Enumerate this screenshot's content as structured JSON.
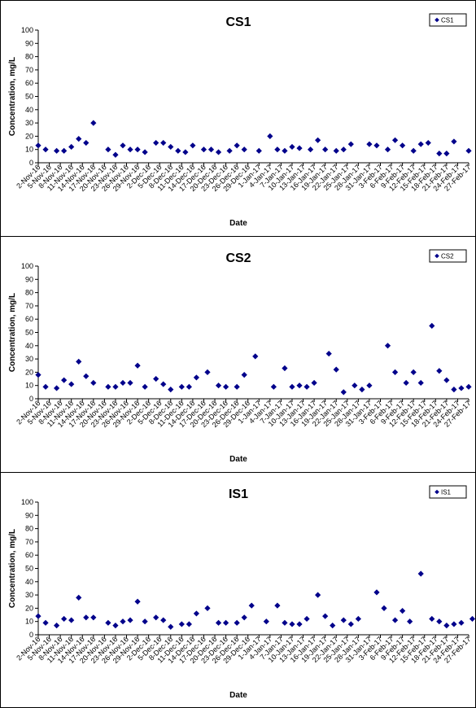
{
  "chart_data": [
    {
      "type": "scatter",
      "title": "CS1",
      "xlabel": "Date",
      "ylabel": "Concentration, mg/L",
      "ylim": [
        0,
        100
      ],
      "yticks": [
        0,
        10,
        20,
        30,
        40,
        50,
        60,
        70,
        80,
        90,
        100
      ],
      "xlim": [
        "2-Nov-16",
        "27-Feb-17"
      ],
      "xtick_labels": [
        "2-Nov-16",
        "5-Nov-16",
        "8-Nov-16",
        "11-Nov-16",
        "14-Nov-16",
        "17-Nov-16",
        "20-Nov-16",
        "23-Nov-16",
        "26-Nov-16",
        "29-Nov-16",
        "2-Dec-16",
        "5-Dec-16",
        "8-Dec-16",
        "11-Dec-16",
        "14-Dec-16",
        "17-Dec-16",
        "20-Dec-16",
        "23-Dec-16",
        "26-Dec-16",
        "29-Dec-16",
        "1-Jan-17",
        "4-Jan-17",
        "7-Jan-17",
        "10-Jan-17",
        "13-Jan-17",
        "16-Jan-17",
        "19-Jan-17",
        "22-Jan-17",
        "25-Jan-17",
        "28-Jan-17",
        "31-Jan-17",
        "3-Feb-17",
        "6-Feb-17",
        "9-Feb-17",
        "12-Feb-17",
        "15-Feb-17",
        "18-Feb-17",
        "21-Feb-17",
        "24-Feb-17",
        "27-Feb-17"
      ],
      "legend": "top-right",
      "grid": false,
      "color": "#00008B",
      "series": [
        {
          "name": "CS1",
          "points": [
            [
              "2-Nov-16",
              13
            ],
            [
              "4-Nov-16",
              10
            ],
            [
              "7-Nov-16",
              9
            ],
            [
              "9-Nov-16",
              9
            ],
            [
              "11-Nov-16",
              12
            ],
            [
              "13-Nov-16",
              18
            ],
            [
              "15-Nov-16",
              15
            ],
            [
              "17-Nov-16",
              30
            ],
            [
              "21-Nov-16",
              10
            ],
            [
              "23-Nov-16",
              6
            ],
            [
              "25-Nov-16",
              13
            ],
            [
              "27-Nov-16",
              10
            ],
            [
              "29-Nov-16",
              10
            ],
            [
              "1-Dec-16",
              8
            ],
            [
              "4-Dec-16",
              15
            ],
            [
              "6-Dec-16",
              15
            ],
            [
              "8-Dec-16",
              12
            ],
            [
              "10-Dec-16",
              9
            ],
            [
              "12-Dec-16",
              8
            ],
            [
              "14-Dec-16",
              13
            ],
            [
              "17-Dec-16",
              10
            ],
            [
              "19-Dec-16",
              10
            ],
            [
              "21-Dec-16",
              8
            ],
            [
              "24-Dec-16",
              9
            ],
            [
              "26-Dec-16",
              13
            ],
            [
              "28-Dec-16",
              10
            ],
            [
              "1-Jan-17",
              9
            ],
            [
              "4-Jan-17",
              20
            ],
            [
              "6-Jan-17",
              10
            ],
            [
              "8-Jan-17",
              9
            ],
            [
              "10-Jan-17",
              12
            ],
            [
              "12-Jan-17",
              11
            ],
            [
              "15-Jan-17",
              10
            ],
            [
              "17-Jan-17",
              17
            ],
            [
              "19-Jan-17",
              10
            ],
            [
              "22-Jan-17",
              9
            ],
            [
              "24-Jan-17",
              10
            ],
            [
              "26-Jan-17",
              14
            ],
            [
              "31-Jan-17",
              14
            ],
            [
              "2-Feb-17",
              13
            ],
            [
              "5-Feb-17",
              10
            ],
            [
              "7-Feb-17",
              17
            ],
            [
              "9-Feb-17",
              13
            ],
            [
              "12-Feb-17",
              9
            ],
            [
              "14-Feb-17",
              14
            ],
            [
              "16-Feb-17",
              15
            ],
            [
              "19-Feb-17",
              7
            ],
            [
              "21-Feb-17",
              7
            ],
            [
              "23-Feb-17",
              16
            ],
            [
              "27-Feb-17",
              9
            ]
          ]
        }
      ]
    },
    {
      "type": "scatter",
      "title": "CS2",
      "xlabel": "Date",
      "ylabel": "Concentration, mg/L",
      "ylim": [
        0,
        100
      ],
      "yticks": [
        0,
        10,
        20,
        30,
        40,
        50,
        60,
        70,
        80,
        90,
        100
      ],
      "xlim": [
        "2-Nov-16",
        "27-Feb-17"
      ],
      "xtick_labels": [
        "2-Nov-16",
        "5-Nov-16",
        "8-Nov-16",
        "11-Nov-16",
        "14-Nov-16",
        "17-Nov-16",
        "20-Nov-16",
        "23-Nov-16",
        "26-Nov-16",
        "29-Nov-16",
        "2-Dec-16",
        "5-Dec-16",
        "8-Dec-16",
        "11-Dec-16",
        "14-Dec-16",
        "17-Dec-16",
        "20-Dec-16",
        "23-Dec-16",
        "26-Dec-16",
        "29-Dec-16",
        "1-Jan-17",
        "4-Jan-17",
        "7-Jan-17",
        "10-Jan-17",
        "13-Jan-17",
        "16-Jan-17",
        "19-Jan-17",
        "22-Jan-17",
        "25-Jan-17",
        "28-Jan-17",
        "31-Jan-17",
        "3-Feb-17",
        "6-Feb-17",
        "9-Feb-17",
        "12-Feb-17",
        "15-Feb-17",
        "18-Feb-17",
        "21-Feb-17",
        "24-Feb-17",
        "27-Feb-17"
      ],
      "legend": "top-right",
      "grid": false,
      "color": "#00008B",
      "series": [
        {
          "name": "CS2",
          "points": [
            [
              "2-Nov-16",
              18
            ],
            [
              "4-Nov-16",
              9
            ],
            [
              "7-Nov-16",
              8
            ],
            [
              "9-Nov-16",
              14
            ],
            [
              "11-Nov-16",
              11
            ],
            [
              "13-Nov-16",
              28
            ],
            [
              "15-Nov-16",
              17
            ],
            [
              "17-Nov-16",
              12
            ],
            [
              "21-Nov-16",
              9
            ],
            [
              "23-Nov-16",
              9
            ],
            [
              "25-Nov-16",
              12
            ],
            [
              "27-Nov-16",
              12
            ],
            [
              "29-Nov-16",
              25
            ],
            [
              "1-Dec-16",
              9
            ],
            [
              "4-Dec-16",
              15
            ],
            [
              "6-Dec-16",
              11
            ],
            [
              "8-Dec-16",
              7
            ],
            [
              "11-Dec-16",
              9
            ],
            [
              "13-Dec-16",
              9
            ],
            [
              "15-Dec-16",
              16
            ],
            [
              "18-Dec-16",
              20
            ],
            [
              "21-Dec-16",
              10
            ],
            [
              "23-Dec-16",
              9
            ],
            [
              "26-Dec-16",
              9
            ],
            [
              "28-Dec-16",
              18
            ],
            [
              "31-Dec-16",
              32
            ],
            [
              "5-Jan-17",
              9
            ],
            [
              "8-Jan-17",
              23
            ],
            [
              "10-Jan-17",
              9
            ],
            [
              "12-Jan-17",
              10
            ],
            [
              "14-Jan-17",
              9
            ],
            [
              "16-Jan-17",
              12
            ],
            [
              "20-Jan-17",
              34
            ],
            [
              "22-Jan-17",
              22
            ],
            [
              "24-Jan-17",
              5
            ],
            [
              "27-Jan-17",
              10
            ],
            [
              "29-Jan-17",
              7
            ],
            [
              "31-Jan-17",
              10
            ],
            [
              "5-Feb-17",
              40
            ],
            [
              "7-Feb-17",
              20
            ],
            [
              "10-Feb-17",
              12
            ],
            [
              "12-Feb-17",
              20
            ],
            [
              "14-Feb-17",
              12
            ],
            [
              "17-Feb-17",
              55
            ],
            [
              "19-Feb-17",
              21
            ],
            [
              "21-Feb-17",
              14
            ],
            [
              "23-Feb-17",
              7
            ],
            [
              "25-Feb-17",
              8
            ],
            [
              "27-Feb-17",
              9
            ],
            [
              "2-Mar-17",
              14
            ]
          ]
        }
      ]
    },
    {
      "type": "scatter",
      "title": "IS1",
      "xlabel": "Date",
      "ylabel": "Concentration, mg/L",
      "ylim": [
        0,
        100
      ],
      "yticks": [
        0,
        10,
        20,
        30,
        40,
        50,
        60,
        70,
        80,
        90,
        100
      ],
      "xlim": [
        "2-Nov-16",
        "27-Feb-17"
      ],
      "xtick_labels": [
        "2-Nov-16",
        "5-Nov-16",
        "8-Nov-16",
        "11-Nov-16",
        "14-Nov-16",
        "17-Nov-16",
        "20-Nov-16",
        "23-Nov-16",
        "26-Nov-16",
        "29-Nov-16",
        "2-Dec-16",
        "5-Dec-16",
        "8-Dec-16",
        "11-Dec-16",
        "14-Dec-16",
        "17-Dec-16",
        "20-Dec-16",
        "23-Dec-16",
        "26-Dec-16",
        "29-Dec-16",
        "1-Jan-17",
        "4-Jan-17",
        "7-Jan-17",
        "10-Jan-17",
        "13-Jan-17",
        "16-Jan-17",
        "19-Jan-17",
        "22-Jan-17",
        "25-Jan-17",
        "28-Jan-17",
        "31-Jan-17",
        "3-Feb-17",
        "6-Feb-17",
        "9-Feb-17",
        "12-Feb-17",
        "15-Feb-17",
        "18-Feb-17",
        "21-Feb-17",
        "24-Feb-17",
        "27-Feb-17"
      ],
      "legend": "top-right",
      "grid": false,
      "color": "#00008B",
      "series": [
        {
          "name": "IS1",
          "points": [
            [
              "2-Nov-16",
              14
            ],
            [
              "4-Nov-16",
              9
            ],
            [
              "7-Nov-16",
              7
            ],
            [
              "9-Nov-16",
              12
            ],
            [
              "11-Nov-16",
              11
            ],
            [
              "13-Nov-16",
              28
            ],
            [
              "15-Nov-16",
              13
            ],
            [
              "17-Nov-16",
              13
            ],
            [
              "21-Nov-16",
              9
            ],
            [
              "23-Nov-16",
              7
            ],
            [
              "25-Nov-16",
              10
            ],
            [
              "27-Nov-16",
              11
            ],
            [
              "29-Nov-16",
              25
            ],
            [
              "1-Dec-16",
              10
            ],
            [
              "4-Dec-16",
              13
            ],
            [
              "6-Dec-16",
              11
            ],
            [
              "8-Dec-16",
              6
            ],
            [
              "11-Dec-16",
              8
            ],
            [
              "13-Dec-16",
              8
            ],
            [
              "15-Dec-16",
              16
            ],
            [
              "18-Dec-16",
              20
            ],
            [
              "21-Dec-16",
              9
            ],
            [
              "23-Dec-16",
              9
            ],
            [
              "26-Dec-16",
              9
            ],
            [
              "28-Dec-16",
              13
            ],
            [
              "30-Dec-16",
              22
            ],
            [
              "3-Jan-17",
              10
            ],
            [
              "6-Jan-17",
              22
            ],
            [
              "8-Jan-17",
              9
            ],
            [
              "10-Jan-17",
              8
            ],
            [
              "12-Jan-17",
              8
            ],
            [
              "14-Jan-17",
              12
            ],
            [
              "17-Jan-17",
              30
            ],
            [
              "19-Jan-17",
              14
            ],
            [
              "21-Jan-17",
              7
            ],
            [
              "24-Jan-17",
              11
            ],
            [
              "26-Jan-17",
              8
            ],
            [
              "28-Jan-17",
              12
            ],
            [
              "2-Feb-17",
              32
            ],
            [
              "4-Feb-17",
              20
            ],
            [
              "7-Feb-17",
              11
            ],
            [
              "9-Feb-17",
              18
            ],
            [
              "11-Feb-17",
              10
            ],
            [
              "14-Feb-17",
              46
            ],
            [
              "17-Feb-17",
              12
            ],
            [
              "19-Feb-17",
              10
            ],
            [
              "21-Feb-17",
              7
            ],
            [
              "23-Feb-17",
              8
            ],
            [
              "25-Feb-17",
              9
            ],
            [
              "28-Feb-17",
              12
            ]
          ]
        }
      ]
    }
  ]
}
